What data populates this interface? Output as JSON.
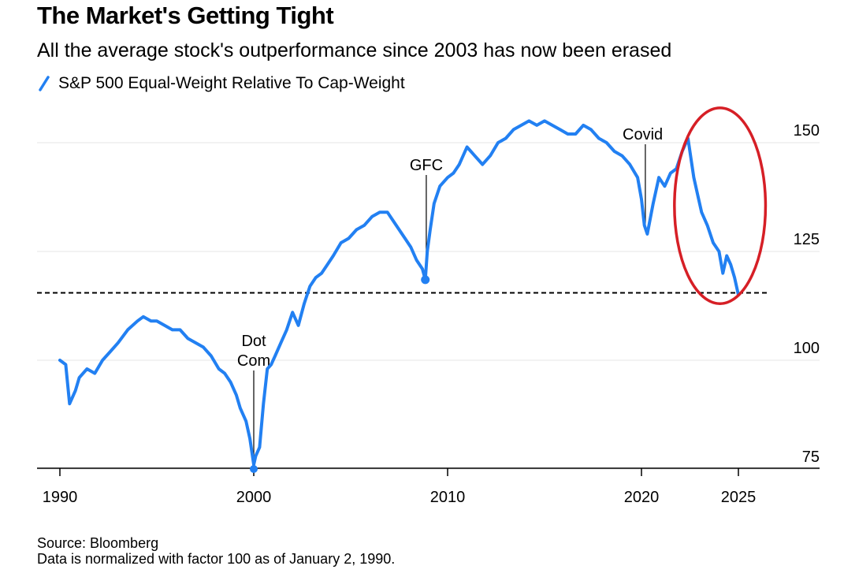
{
  "colors": {
    "series": "#2280f2",
    "grid": "#e4e4e4",
    "axis": "#000000",
    "highlight_circle": "#d61f26",
    "reference_line": "#000000"
  },
  "header": {
    "title": "The Market's Getting Tight",
    "subtitle": "All the average stock's outperformance since 2003 has now been erased"
  },
  "legend": {
    "label": "S&P 500 Equal-Weight Relative To Cap-Weight",
    "icon": "slash-line-icon"
  },
  "footer": {
    "source": "Source: Bloomberg",
    "note": "Data is normalized with factor 100 as of January 2, 1990."
  },
  "chart_data": {
    "type": "line",
    "title": "The Market's Getting Tight",
    "subtitle": "All the average stock's outperformance since 2003 has now been erased",
    "xlabel": "",
    "ylabel": "",
    "xlim": [
      1989.3,
      2028.8
    ],
    "ylim": [
      72,
      158
    ],
    "x_ticks": [
      1990,
      2000,
      2010,
      2020,
      2025
    ],
    "y_ticks": [
      75,
      100,
      125,
      150
    ],
    "grid": true,
    "legend_placement": "top-left",
    "reference_line": {
      "y": 115.5,
      "style": "dashed"
    },
    "highlight": {
      "shape": "ellipse",
      "x_range": [
        2021.7,
        2026.4
      ],
      "y_range": [
        113,
        158
      ]
    },
    "annotations": [
      {
        "text": "Dot\nCom",
        "x": 2000.0,
        "y": 75
      },
      {
        "text": "GFC",
        "x": 2008.9,
        "y": 118.5
      },
      {
        "text": "Covid",
        "x": 2020.2,
        "y": 131
      }
    ],
    "series": [
      {
        "name": "S&P 500 Equal-Weight Relative To Cap-Weight",
        "x": [
          1990.0,
          1990.3,
          1990.5,
          1990.8,
          1991.0,
          1991.4,
          1991.8,
          1992.2,
          1992.6,
          1993.0,
          1993.5,
          1994.0,
          1994.3,
          1994.7,
          1995.0,
          1995.4,
          1995.8,
          1996.2,
          1996.6,
          1997.0,
          1997.4,
          1997.8,
          1998.2,
          1998.5,
          1998.8,
          1999.1,
          1999.3,
          1999.6,
          1999.8,
          2000.0,
          2000.1,
          2000.3,
          2000.5,
          2000.7,
          2000.9,
          2001.1,
          2001.4,
          2001.7,
          2002.0,
          2002.3,
          2002.6,
          2002.9,
          2003.2,
          2003.5,
          2003.8,
          2004.1,
          2004.5,
          2004.9,
          2005.3,
          2005.7,
          2006.1,
          2006.5,
          2006.9,
          2007.2,
          2007.5,
          2007.8,
          2008.1,
          2008.4,
          2008.7,
          2008.85,
          2008.95,
          2009.1,
          2009.3,
          2009.6,
          2010.0,
          2010.3,
          2010.6,
          2011.0,
          2011.4,
          2011.8,
          2012.2,
          2012.6,
          2013.0,
          2013.4,
          2013.8,
          2014.2,
          2014.6,
          2015.0,
          2015.4,
          2015.8,
          2016.2,
          2016.6,
          2017.0,
          2017.4,
          2017.8,
          2018.2,
          2018.6,
          2019.0,
          2019.4,
          2019.8,
          2020.0,
          2020.15,
          2020.3,
          2020.6,
          2020.9,
          2021.2,
          2021.5,
          2021.8,
          2022.1,
          2022.4,
          2022.7,
          2022.9,
          2023.1,
          2023.4,
          2023.7,
          2024.0,
          2024.2,
          2024.4,
          2024.6,
          2024.8,
          2025.0
        ],
        "values": [
          100,
          99,
          90,
          93,
          96,
          98,
          97,
          100,
          102,
          104,
          107,
          109,
          110,
          109,
          109,
          108,
          107,
          107,
          105,
          104,
          103,
          101,
          98,
          97,
          95,
          92,
          89,
          86,
          82,
          76,
          78,
          80,
          90,
          98,
          99,
          101,
          104,
          107,
          111,
          108,
          113,
          117,
          119,
          120,
          122,
          124,
          127,
          128,
          130,
          131,
          133,
          134,
          134,
          132,
          130,
          128,
          126,
          123,
          121,
          118.5,
          125,
          130,
          136,
          140,
          142,
          143,
          145,
          149,
          147,
          145,
          147,
          150,
          151,
          153,
          154,
          155,
          154,
          155,
          154,
          153,
          152,
          152,
          154,
          153,
          151,
          150,
          148,
          147,
          145,
          142,
          137,
          131,
          129,
          136,
          142,
          140,
          143,
          144,
          148,
          151,
          142,
          138,
          134,
          131,
          127,
          125,
          120,
          124,
          122,
          119,
          115
        ]
      }
    ]
  }
}
